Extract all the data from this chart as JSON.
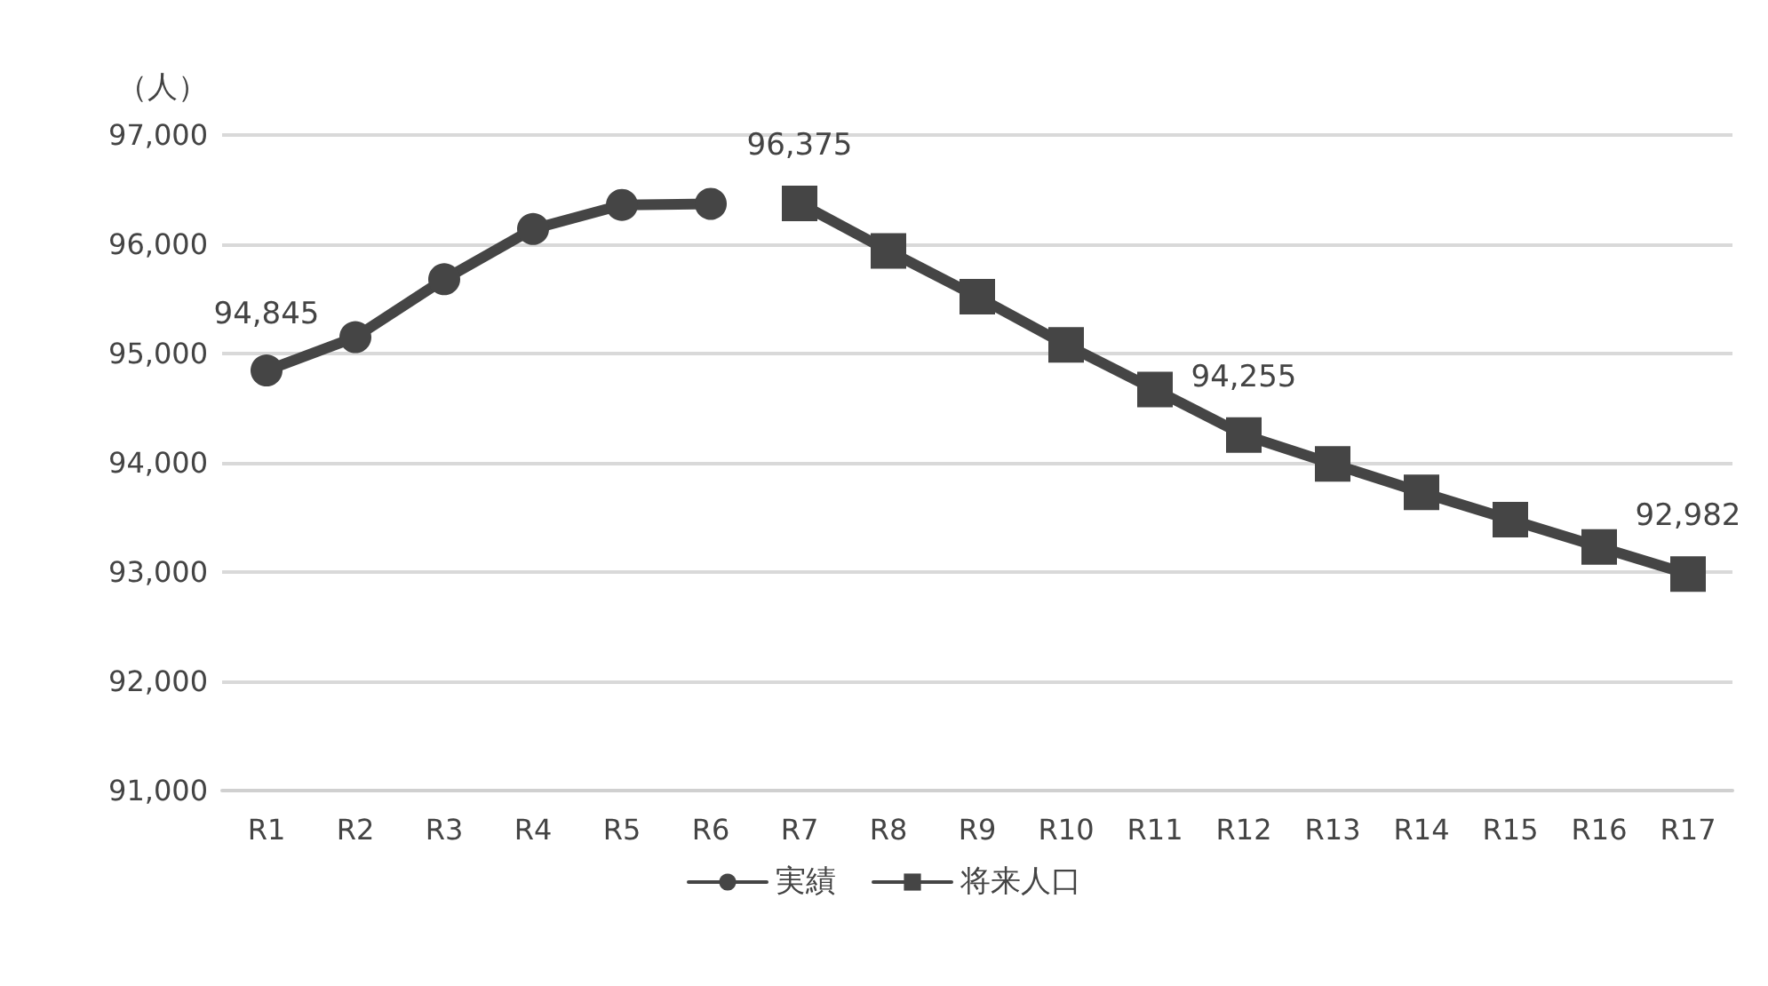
{
  "chart_data": {
    "type": "line",
    "ylabel": "（人）",
    "categories": [
      "R1",
      "R2",
      "R3",
      "R4",
      "R5",
      "R6",
      "R7",
      "R8",
      "R9",
      "R10",
      "R11",
      "R12",
      "R13",
      "R14",
      "R15",
      "R16",
      "R17"
    ],
    "series": [
      {
        "name": "実績",
        "color": "#454545",
        "marker": "circle",
        "values": [
          94845,
          95150,
          95680,
          96140,
          96360,
          96370,
          null,
          null,
          null,
          null,
          null,
          null,
          null,
          null,
          null,
          null,
          null
        ],
        "value_labels": [
          "94,845",
          null,
          null,
          null,
          null,
          null,
          null,
          null,
          null,
          null,
          null,
          null,
          null,
          null,
          null,
          null,
          null
        ]
      },
      {
        "name": "将来人口",
        "color": "#454545",
        "marker": "square",
        "values": [
          null,
          null,
          null,
          null,
          null,
          null,
          96375,
          95940,
          95520,
          95080,
          94670,
          94255,
          93990,
          93730,
          93480,
          93230,
          92982
        ],
        "value_labels": [
          null,
          null,
          null,
          null,
          null,
          null,
          "96,375",
          null,
          null,
          null,
          null,
          "94,255",
          null,
          null,
          null,
          null,
          "92,982"
        ]
      }
    ],
    "ylim": [
      91000,
      97000
    ],
    "yticks": [
      {
        "value": 91000,
        "label": "91,000"
      },
      {
        "value": 92000,
        "label": "92,000"
      },
      {
        "value": 93000,
        "label": "93,000"
      },
      {
        "value": 94000,
        "label": "94,000"
      },
      {
        "value": 95000,
        "label": "95,000"
      },
      {
        "value": 96000,
        "label": "96,000"
      },
      {
        "value": 97000,
        "label": "97,000"
      }
    ],
    "grid": "y",
    "legend": "bottom",
    "line_style": "solid"
  }
}
